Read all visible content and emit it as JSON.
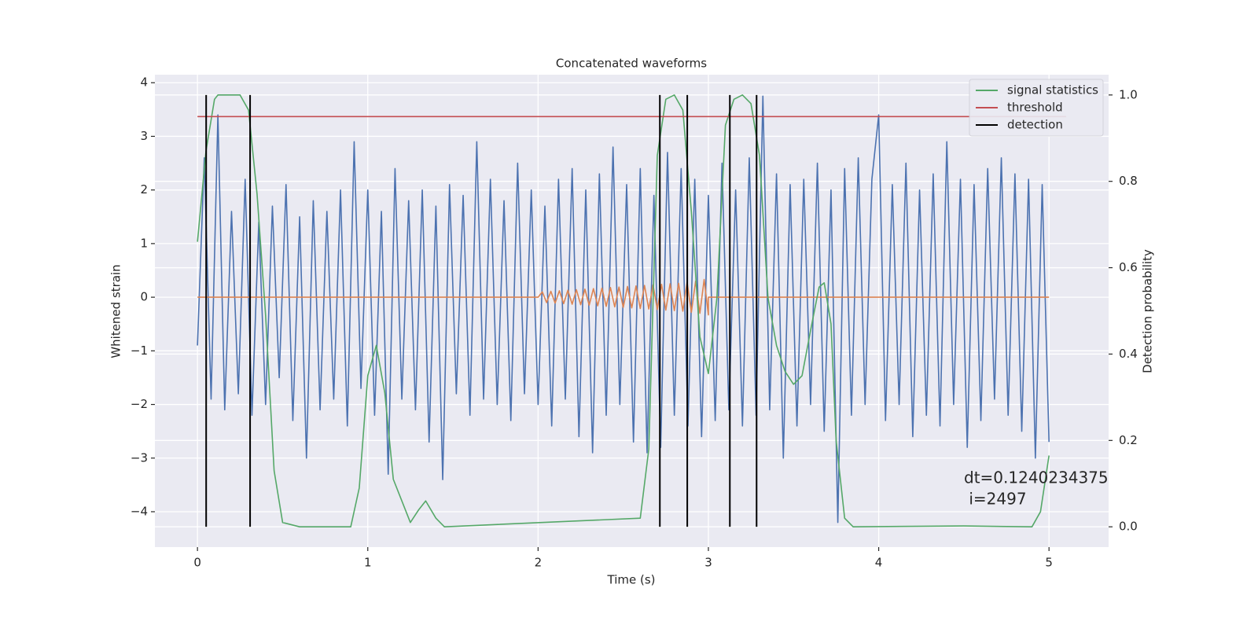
{
  "chart_data": {
    "type": "line",
    "title": "Concatenated waveforms",
    "xlabel": "Time (s)",
    "ylabel": "Whitened strain",
    "y2label": "Detection probability",
    "xlim": [
      -0.25,
      5.35
    ],
    "ylim": [
      -4.66,
      4.15
    ],
    "y2lim": [
      -0.047,
      1.047
    ],
    "xticks": [
      0,
      1,
      2,
      3,
      4,
      5
    ],
    "yticks": [
      {
        "value": -4,
        "label": "−4"
      },
      {
        "value": -3,
        "label": "−3"
      },
      {
        "value": -2,
        "label": "−2"
      },
      {
        "value": -1,
        "label": "−1"
      },
      0,
      1,
      2,
      3,
      4
    ],
    "y2ticks": [
      {
        "value": 0,
        "label": "0.0"
      },
      {
        "value": 0.2,
        "label": "0.2"
      },
      {
        "value": 0.4,
        "label": "0.4"
      },
      {
        "value": 0.6,
        "label": "0.6"
      },
      {
        "value": 0.8,
        "label": "0.8"
      },
      {
        "value": 1,
        "label": "1.0"
      }
    ],
    "grid": true,
    "background": "#eaeaf2",
    "legend": "upper right",
    "annotation": [
      "dt=0.1240234375",
      " i=2497"
    ],
    "series": [
      {
        "color": "#4c72b0",
        "axis": "y",
        "style": "line",
        "x": [
          0,
          0.04,
          0.08,
          0.12,
          0.16,
          0.2,
          0.24,
          0.28,
          0.32,
          0.36,
          0.4,
          0.44,
          0.48,
          0.52,
          0.56,
          0.6,
          0.64,
          0.68,
          0.72,
          0.76,
          0.8,
          0.84,
          0.88,
          0.92,
          0.96,
          1.0,
          1.04,
          1.08,
          1.12,
          1.16,
          1.2,
          1.24,
          1.28,
          1.32,
          1.36,
          1.4,
          1.44,
          1.48,
          1.52,
          1.56,
          1.6,
          1.64,
          1.68,
          1.72,
          1.76,
          1.8,
          1.84,
          1.88,
          1.92,
          1.96,
          2.0,
          2.04,
          2.08,
          2.12,
          2.16,
          2.2,
          2.24,
          2.28,
          2.32,
          2.36,
          2.4,
          2.44,
          2.48,
          2.52,
          2.56,
          2.6,
          2.64,
          2.68,
          2.72,
          2.76,
          2.8,
          2.84,
          2.88,
          2.92,
          2.96,
          3.0,
          3.04,
          3.08,
          3.12,
          3.16,
          3.2,
          3.24,
          3.28,
          3.32,
          3.36,
          3.4,
          3.44,
          3.48,
          3.52,
          3.56,
          3.6,
          3.64,
          3.68,
          3.72,
          3.76,
          3.8,
          3.84,
          3.88,
          3.92,
          3.96,
          4.0,
          4.04,
          4.08,
          4.12,
          4.16,
          4.2,
          4.24,
          4.28,
          4.32,
          4.36,
          4.4,
          4.44,
          4.48,
          4.52,
          4.56,
          4.6,
          4.64,
          4.68,
          4.72,
          4.76,
          4.8,
          4.84,
          4.88,
          4.92,
          4.96,
          5.0
        ],
        "values": [
          -0.9,
          2.6,
          -1.9,
          3.4,
          -2.1,
          1.6,
          -1.8,
          2.2,
          -2.2,
          1.4,
          -2.0,
          1.7,
          -1.5,
          2.1,
          -2.3,
          1.5,
          -3.0,
          1.8,
          -2.1,
          1.6,
          -1.9,
          2.0,
          -2.4,
          2.9,
          -1.7,
          2.0,
          -2.2,
          1.6,
          -3.3,
          2.4,
          -1.9,
          1.8,
          -2.1,
          2.0,
          -2.7,
          1.7,
          -3.4,
          2.1,
          -1.8,
          1.9,
          -2.2,
          2.9,
          -1.9,
          2.2,
          -2.0,
          1.8,
          -2.3,
          2.5,
          -1.8,
          2.0,
          -2.0,
          1.7,
          -2.4,
          2.2,
          -1.9,
          2.4,
          -2.6,
          2.0,
          -2.9,
          2.3,
          -2.2,
          2.8,
          -2.0,
          2.1,
          -2.7,
          2.4,
          -2.9,
          1.9,
          -2.8,
          2.7,
          -2.2,
          2.4,
          -2.4,
          2.2,
          -2.6,
          1.9,
          -2.3,
          2.5,
          -2.1,
          2.0,
          -2.4,
          2.6,
          -2.2,
          3.75,
          -2.1,
          2.3,
          -3.0,
          2.1,
          -2.4,
          2.2,
          -2.0,
          2.5,
          -2.5,
          2.0,
          -4.2,
          2.4,
          -2.2,
          2.6,
          -2.0,
          2.2,
          3.4,
          -2.3,
          2.1,
          -2.0,
          2.5,
          -2.6,
          2.0,
          -2.2,
          2.3,
          -2.4,
          2.9,
          -2.0,
          2.2,
          -2.8,
          2.1,
          -2.3,
          2.4,
          -1.9,
          2.6,
          -2.2,
          2.3,
          -2.5,
          2.2,
          -3.0,
          2.1,
          -2.7
        ]
      },
      {
        "color": "#dd8452",
        "axis": "y",
        "style": "line",
        "x": [
          0,
          2.0,
          2.025,
          2.05,
          2.075,
          2.1,
          2.125,
          2.15,
          2.175,
          2.2,
          2.225,
          2.25,
          2.275,
          2.3,
          2.325,
          2.35,
          2.375,
          2.4,
          2.425,
          2.45,
          2.475,
          2.5,
          2.525,
          2.55,
          2.575,
          2.6,
          2.625,
          2.65,
          2.675,
          2.7,
          2.725,
          2.75,
          2.775,
          2.8,
          2.825,
          2.85,
          2.875,
          2.9,
          2.925,
          2.95,
          2.975,
          3.0,
          3.0,
          5.0
        ],
        "values": [
          0,
          0,
          0.1,
          -0.1,
          0.11,
          -0.11,
          0.12,
          -0.12,
          0.13,
          -0.13,
          0.14,
          -0.14,
          0.15,
          -0.15,
          0.16,
          -0.16,
          0.17,
          -0.17,
          0.18,
          -0.18,
          0.19,
          -0.19,
          0.2,
          -0.2,
          0.21,
          -0.21,
          0.22,
          -0.22,
          0.23,
          -0.23,
          0.24,
          -0.24,
          0.25,
          -0.25,
          0.26,
          -0.26,
          0.28,
          -0.28,
          0.3,
          -0.3,
          0.33,
          -0.33,
          0,
          0
        ]
      },
      {
        "name": "signal statistics",
        "color": "#55a868",
        "axis": "y2",
        "style": "line",
        "x": [
          0,
          0.05,
          0.1,
          0.12,
          0.25,
          0.3,
          0.35,
          0.4,
          0.45,
          0.5,
          0.6,
          0.9,
          0.95,
          1.0,
          1.05,
          1.1,
          1.15,
          1.25,
          1.3,
          1.34,
          1.4,
          1.45,
          2.6,
          2.65,
          2.7,
          2.75,
          2.8,
          2.85,
          2.9,
          2.95,
          3.0,
          3.05,
          3.1,
          3.15,
          3.2,
          3.25,
          3.3,
          3.35,
          3.4,
          3.45,
          3.5,
          3.55,
          3.6,
          3.65,
          3.68,
          3.72,
          3.75,
          3.8,
          3.85,
          4.5,
          4.9,
          4.95,
          5.0
        ],
        "values": [
          0.66,
          0.87,
          0.99,
          1.0,
          1.0,
          0.965,
          0.77,
          0.49,
          0.13,
          0.01,
          0,
          0,
          0.09,
          0.35,
          0.42,
          0.31,
          0.11,
          0.01,
          0.04,
          0.06,
          0.02,
          0,
          0.02,
          0.18,
          0.86,
          0.99,
          1.0,
          0.965,
          0.73,
          0.44,
          0.355,
          0.53,
          0.93,
          0.99,
          1.0,
          0.98,
          0.86,
          0.53,
          0.42,
          0.36,
          0.33,
          0.35,
          0.455,
          0.555,
          0.565,
          0.47,
          0.2,
          0.02,
          0,
          0.002,
          0,
          0.035,
          0.165
        ]
      },
      {
        "name": "threshold",
        "color": "#c44e52",
        "axis": "y2",
        "style": "line",
        "x": [
          0,
          5.1
        ],
        "values": [
          0.95,
          0.95
        ]
      },
      {
        "name": "detection",
        "color": "#000000",
        "axis": "y2",
        "style": "vlines",
        "x": [
          0.051,
          0.309,
          2.715,
          2.876,
          3.126,
          3.283
        ],
        "ymin": 0,
        "ymax": 1
      }
    ]
  }
}
